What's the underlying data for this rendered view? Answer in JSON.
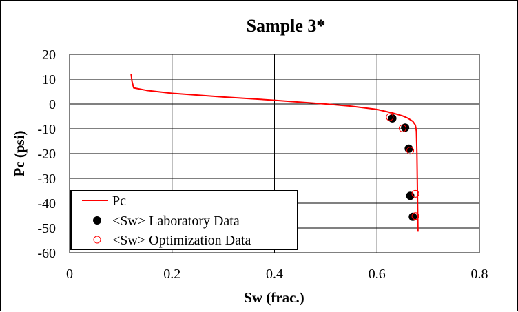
{
  "chart_data": {
    "type": "scatter",
    "title": "Sample 3*",
    "xlabel": "Sw (frac.)",
    "ylabel": "Pc (psi)",
    "xlim": [
      0,
      0.8
    ],
    "ylim": [
      -60,
      20
    ],
    "x_ticks": [
      0,
      0.2,
      0.4,
      0.6,
      0.8
    ],
    "x_tick_labels": [
      "0",
      "0.2",
      "0.4",
      "0.6",
      "0.8"
    ],
    "y_ticks": [
      20,
      10,
      0,
      -10,
      -20,
      -30,
      -40,
      -50,
      -60
    ],
    "y_tick_labels": [
      "20",
      "10",
      "0",
      "-10",
      "-20",
      "-30",
      "-40",
      "-50",
      "-60"
    ],
    "grid": true,
    "legend_position": "bottom-left",
    "series": [
      {
        "name": "Pc",
        "kind": "line",
        "color": "#ff0000",
        "x": [
          0.12,
          0.122,
          0.125,
          0.15,
          0.2,
          0.3,
          0.4,
          0.5,
          0.55,
          0.6,
          0.63,
          0.65,
          0.66,
          0.67,
          0.675,
          0.677,
          0.678,
          0.679,
          0.68
        ],
        "y": [
          12,
          9,
          6.5,
          5.5,
          4.3,
          2.8,
          1.5,
          0,
          -0.9,
          -2.2,
          -3.6,
          -4.8,
          -5.7,
          -7,
          -8.5,
          -11,
          -20,
          -35,
          -51.5
        ]
      },
      {
        "name": "<Sw> Laboratory Data",
        "kind": "marker-filled",
        "color": "#000000",
        "x": [
          0.63,
          0.655,
          0.662,
          0.665,
          0.67
        ],
        "y": [
          -5.8,
          -9.5,
          -18,
          -37,
          -45.5
        ]
      },
      {
        "name": "<Sw> Optimization Data",
        "kind": "marker-open",
        "color": "#ff0000",
        "x": [
          0.625,
          0.65,
          0.665,
          0.675,
          0.675
        ],
        "y": [
          -5.3,
          -9.8,
          -18.8,
          -36.2,
          -45.2
        ]
      }
    ]
  }
}
